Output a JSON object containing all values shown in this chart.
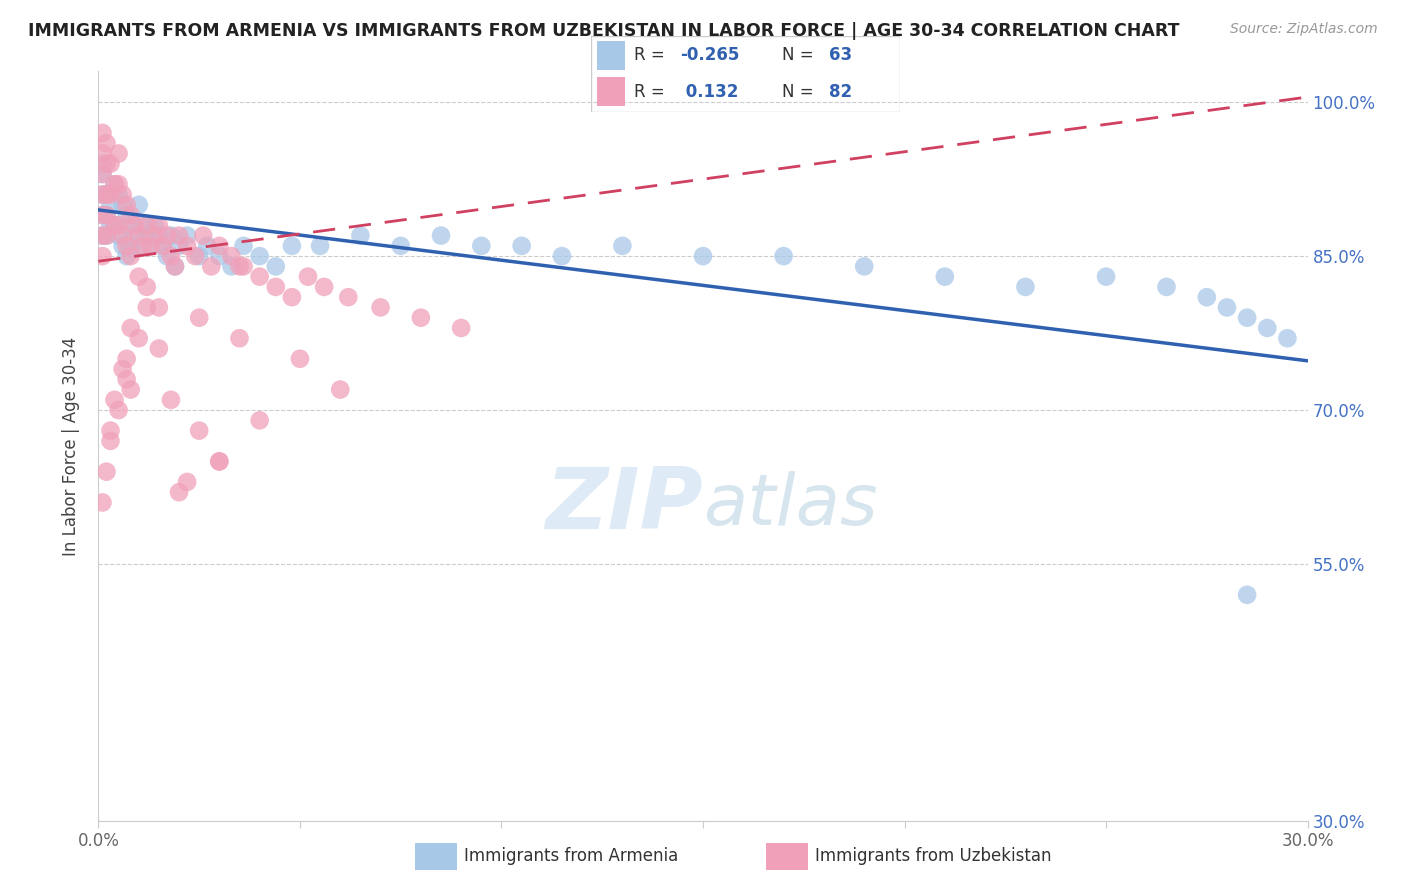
{
  "title": "IMMIGRANTS FROM ARMENIA VS IMMIGRANTS FROM UZBEKISTAN IN LABOR FORCE | AGE 30-34 CORRELATION CHART",
  "source": "Source: ZipAtlas.com",
  "ylabel": "In Labor Force | Age 30-34",
  "x_min": 0.0,
  "x_max": 0.3,
  "y_min": 0.3,
  "y_max": 1.03,
  "armenia_R": -0.265,
  "armenia_N": 63,
  "uzbekistan_R": 0.132,
  "uzbekistan_N": 82,
  "armenia_color": "#a8c8e8",
  "uzbekistan_color": "#f0a0b8",
  "armenia_line_color": "#3060b0",
  "uzbekistan_line_color": "#d04060",
  "watermark_zip": "ZIP",
  "watermark_atlas": "atlas",
  "armenia_line_x0": 0.0,
  "armenia_line_y0": 0.895,
  "armenia_line_x1": 0.3,
  "armenia_line_y1": 0.748,
  "uzbekistan_line_x0": 0.0,
  "uzbekistan_line_y0": 0.845,
  "uzbekistan_line_x1": 0.3,
  "uzbekistan_line_y1": 1.005,
  "armenia_x": [
    0.001,
    0.001,
    0.001,
    0.001,
    0.001,
    0.002,
    0.002,
    0.002,
    0.003,
    0.003,
    0.004,
    0.004,
    0.005,
    0.005,
    0.006,
    0.006,
    0.007,
    0.007,
    0.008,
    0.008,
    0.009,
    0.01,
    0.01,
    0.011,
    0.012,
    0.013,
    0.014,
    0.015,
    0.016,
    0.017,
    0.018,
    0.019,
    0.02,
    0.022,
    0.025,
    0.027,
    0.03,
    0.033,
    0.036,
    0.04,
    0.044,
    0.048,
    0.055,
    0.065,
    0.075,
    0.085,
    0.095,
    0.105,
    0.115,
    0.13,
    0.15,
    0.17,
    0.19,
    0.21,
    0.23,
    0.25,
    0.265,
    0.275,
    0.28,
    0.285,
    0.29,
    0.295,
    0.285
  ],
  "armenia_y": [
    0.94,
    0.93,
    0.91,
    0.89,
    0.87,
    0.91,
    0.89,
    0.87,
    0.9,
    0.88,
    0.92,
    0.88,
    0.91,
    0.87,
    0.9,
    0.86,
    0.89,
    0.85,
    0.88,
    0.86,
    0.87,
    0.9,
    0.86,
    0.88,
    0.87,
    0.86,
    0.88,
    0.87,
    0.86,
    0.85,
    0.87,
    0.84,
    0.86,
    0.87,
    0.85,
    0.86,
    0.85,
    0.84,
    0.86,
    0.85,
    0.84,
    0.86,
    0.86,
    0.87,
    0.86,
    0.87,
    0.86,
    0.86,
    0.85,
    0.86,
    0.85,
    0.85,
    0.84,
    0.83,
    0.82,
    0.83,
    0.82,
    0.81,
    0.8,
    0.79,
    0.78,
    0.77,
    0.52
  ],
  "uzbekistan_x": [
    0.001,
    0.001,
    0.001,
    0.001,
    0.001,
    0.001,
    0.001,
    0.002,
    0.002,
    0.002,
    0.002,
    0.002,
    0.003,
    0.003,
    0.004,
    0.004,
    0.005,
    0.005,
    0.005,
    0.006,
    0.006,
    0.007,
    0.007,
    0.008,
    0.008,
    0.009,
    0.01,
    0.011,
    0.012,
    0.013,
    0.014,
    0.015,
    0.016,
    0.017,
    0.018,
    0.019,
    0.02,
    0.022,
    0.024,
    0.026,
    0.028,
    0.03,
    0.033,
    0.036,
    0.04,
    0.044,
    0.048,
    0.052,
    0.056,
    0.062,
    0.07,
    0.08,
    0.09,
    0.035,
    0.025,
    0.015,
    0.012,
    0.01,
    0.008,
    0.006,
    0.004,
    0.003,
    0.002,
    0.001,
    0.05,
    0.06,
    0.04,
    0.03,
    0.02,
    0.015,
    0.01,
    0.007,
    0.005,
    0.003,
    0.007,
    0.008,
    0.03,
    0.025,
    0.012,
    0.018,
    0.022,
    0.035
  ],
  "uzbekistan_y": [
    0.97,
    0.95,
    0.93,
    0.91,
    0.89,
    0.87,
    0.85,
    0.96,
    0.94,
    0.91,
    0.89,
    0.87,
    0.94,
    0.91,
    0.92,
    0.88,
    0.95,
    0.92,
    0.88,
    0.91,
    0.87,
    0.9,
    0.86,
    0.89,
    0.85,
    0.88,
    0.87,
    0.86,
    0.88,
    0.86,
    0.87,
    0.88,
    0.86,
    0.87,
    0.85,
    0.84,
    0.87,
    0.86,
    0.85,
    0.87,
    0.84,
    0.86,
    0.85,
    0.84,
    0.83,
    0.82,
    0.81,
    0.83,
    0.82,
    0.81,
    0.8,
    0.79,
    0.78,
    0.84,
    0.79,
    0.76,
    0.8,
    0.83,
    0.78,
    0.74,
    0.71,
    0.68,
    0.64,
    0.61,
    0.75,
    0.72,
    0.69,
    0.65,
    0.62,
    0.8,
    0.77,
    0.73,
    0.7,
    0.67,
    0.75,
    0.72,
    0.65,
    0.68,
    0.82,
    0.71,
    0.63,
    0.77
  ]
}
